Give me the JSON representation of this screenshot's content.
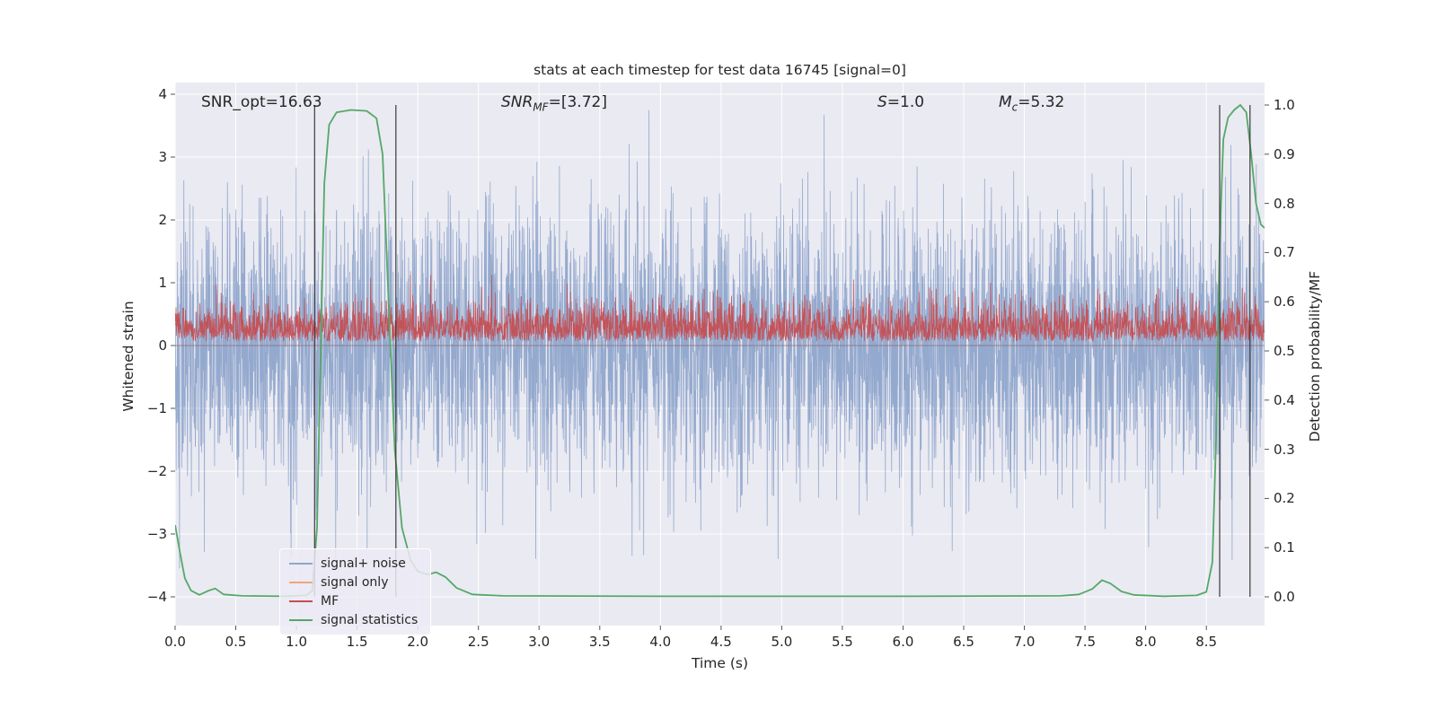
{
  "figure": {
    "title": "stats at each timestep for test data 16745 [signal=0]",
    "xlabel": "Time (s)",
    "ylabel_left": "Whitened strain",
    "ylabel_right": "Detection probability/MF"
  },
  "annotations": {
    "snr_opt": "SNR_opt=16.63",
    "snr_mf_prefix": "SNR",
    "snr_mf_sub": "MF",
    "snr_mf_suffix": "=[3.72]",
    "s_prefix": "S",
    "s_suffix": "=1.0",
    "mc_prefix": "M",
    "mc_sub": "c",
    "mc_suffix": "=5.32"
  },
  "legend": {
    "items": [
      {
        "label": "signal+ noise",
        "color": "#8FA5CE"
      },
      {
        "label": "signal only",
        "color": "#EDA77F"
      },
      {
        "label": "MF",
        "color": "#C44E52"
      },
      {
        "label": "signal statistics",
        "color": "#55A868"
      }
    ]
  },
  "chart_data": {
    "type": "line",
    "title": "stats at each timestep for test data 16745 [signal=0]",
    "xlabel": "Time (s)",
    "ylabel_left": "Whitened strain",
    "ylabel_right": "Detection probability/MF",
    "background": "#EAEAF2",
    "grid_color": "#FFFFFF",
    "grid": true,
    "xlim": [
      0,
      8.98
    ],
    "ylim_left": [
      -4.457,
      4.186
    ],
    "ylim_right": [
      -0.0584,
      1.0456
    ],
    "xticks": [
      0.0,
      0.5,
      1.0,
      1.5,
      2.0,
      2.5,
      3.0,
      3.5,
      4.0,
      4.5,
      5.0,
      5.5,
      6.0,
      6.5,
      7.0,
      7.5,
      8.0,
      8.5
    ],
    "xtick_labels": [
      "0.0",
      "0.5",
      "1.0",
      "1.5",
      "2.0",
      "2.5",
      "3.0",
      "3.5",
      "4.0",
      "4.5",
      "5.0",
      "5.5",
      "6.0",
      "6.5",
      "7.0",
      "7.5",
      "8.0",
      "8.5"
    ],
    "yticks_left": [
      -4,
      -3,
      -2,
      -1,
      0,
      1,
      2,
      3,
      4
    ],
    "ytick_left_labels": [
      "−4",
      "−3",
      "−2",
      "−1",
      "0",
      "1",
      "2",
      "3",
      "4"
    ],
    "yticks_right": [
      0.0,
      0.1,
      0.2,
      0.3,
      0.4,
      0.5,
      0.6,
      0.7,
      0.8,
      0.9,
      1.0
    ],
    "ytick_right_labels": [
      "0.0",
      "0.1",
      "0.2",
      "0.3",
      "0.4",
      "0.5",
      "0.6",
      "0.7",
      "0.8",
      "0.9",
      "1.0"
    ],
    "annotations": [
      {
        "text": "SNR_opt=16.63",
        "x": 0.21,
        "y_left": 3.8
      },
      {
        "text": "SNR_MF=[3.72]",
        "x": 2.69,
        "y_left": 3.8
      },
      {
        "text": "S=1.0",
        "x": 5.79,
        "y_left": 3.8
      },
      {
        "text": "M_c=5.32",
        "x": 6.8,
        "y_left": 3.8
      }
    ],
    "vlines": {
      "x": [
        1.15,
        1.82,
        8.61,
        8.86
      ],
      "color": "#3A3A3A",
      "width": 1.2,
      "span_right": [
        0.0,
        1.0
      ]
    },
    "series": [
      {
        "name": "signal only",
        "kind": "flat",
        "axis": "left",
        "value": 0,
        "color": "#DD8452",
        "width": 1.0,
        "opacity": 1
      },
      {
        "name": "signal+ noise",
        "kind": "noise",
        "axis": "left",
        "n": 4500,
        "mean": 0,
        "std": 1.08,
        "clip": 3.85,
        "seed": 42,
        "color": "#4C72B0",
        "width": 0.8,
        "opacity": 0.55
      },
      {
        "name": "MF",
        "kind": "abs_noise",
        "axis": "left",
        "n": 3600,
        "offset": 0.07,
        "scale": 0.3,
        "clip": 1.12,
        "seed": 9,
        "color": "#C44E52",
        "width": 0.8,
        "opacity": 0.95
      },
      {
        "name": "signal statistics",
        "kind": "points",
        "axis": "right",
        "color": "#55A868",
        "width": 1.8,
        "opacity": 1,
        "points": [
          [
            0.0,
            0.146
          ],
          [
            0.04,
            0.09
          ],
          [
            0.08,
            0.038
          ],
          [
            0.13,
            0.013
          ],
          [
            0.2,
            0.004
          ],
          [
            0.27,
            0.012
          ],
          [
            0.33,
            0.017
          ],
          [
            0.4,
            0.005
          ],
          [
            0.55,
            0.002
          ],
          [
            0.9,
            0.001
          ],
          [
            1.08,
            0.003
          ],
          [
            1.13,
            0.012
          ],
          [
            1.17,
            0.14
          ],
          [
            1.2,
            0.5
          ],
          [
            1.23,
            0.84
          ],
          [
            1.27,
            0.96
          ],
          [
            1.33,
            0.985
          ],
          [
            1.45,
            0.99
          ],
          [
            1.58,
            0.988
          ],
          [
            1.66,
            0.973
          ],
          [
            1.71,
            0.9
          ],
          [
            1.76,
            0.6
          ],
          [
            1.81,
            0.3
          ],
          [
            1.87,
            0.14
          ],
          [
            1.94,
            0.075
          ],
          [
            2.0,
            0.052
          ],
          [
            2.08,
            0.045
          ],
          [
            2.15,
            0.05
          ],
          [
            2.23,
            0.04
          ],
          [
            2.32,
            0.018
          ],
          [
            2.45,
            0.005
          ],
          [
            2.7,
            0.002
          ],
          [
            4.0,
            0.001
          ],
          [
            6.0,
            0.001
          ],
          [
            7.3,
            0.002
          ],
          [
            7.45,
            0.005
          ],
          [
            7.56,
            0.016
          ],
          [
            7.64,
            0.034
          ],
          [
            7.71,
            0.027
          ],
          [
            7.8,
            0.011
          ],
          [
            7.9,
            0.004
          ],
          [
            8.15,
            0.001
          ],
          [
            8.42,
            0.003
          ],
          [
            8.5,
            0.01
          ],
          [
            8.55,
            0.07
          ],
          [
            8.58,
            0.32
          ],
          [
            8.61,
            0.72
          ],
          [
            8.64,
            0.93
          ],
          [
            8.68,
            0.975
          ],
          [
            8.73,
            0.99
          ],
          [
            8.78,
            1.0
          ],
          [
            8.83,
            0.985
          ],
          [
            8.87,
            0.9
          ],
          [
            8.91,
            0.8
          ],
          [
            8.95,
            0.757
          ],
          [
            8.98,
            0.75
          ]
        ]
      }
    ]
  }
}
